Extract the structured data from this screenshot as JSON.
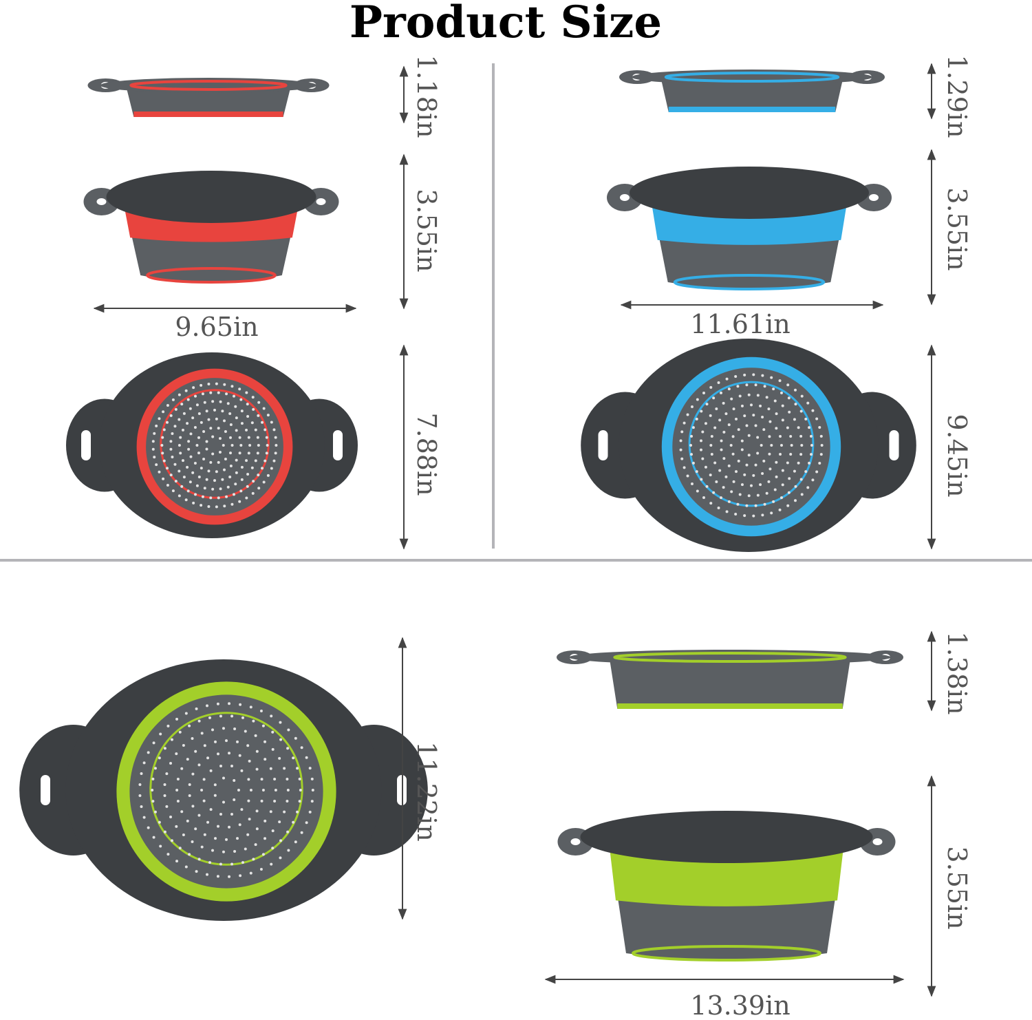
{
  "title": "Product Size",
  "colors": {
    "red": "#e8443e",
    "blue": "#35aee6",
    "green": "#a3cf2a",
    "gray": "#5b5f63",
    "dark": "#3c3f42",
    "divider": "#b4b4b8"
  },
  "products": [
    {
      "color": "red",
      "collapsed_height": "1.18in",
      "expanded_height": "3.55in",
      "width": "9.65in",
      "top_depth": "7.88in"
    },
    {
      "color": "blue",
      "collapsed_height": "1.29in",
      "expanded_height": "3.55in",
      "width": "11.61in",
      "top_depth": "9.45in"
    },
    {
      "color": "green",
      "collapsed_height": "1.38in",
      "expanded_height": "3.55in",
      "width": "13.39in",
      "top_depth": "11.22in"
    }
  ]
}
